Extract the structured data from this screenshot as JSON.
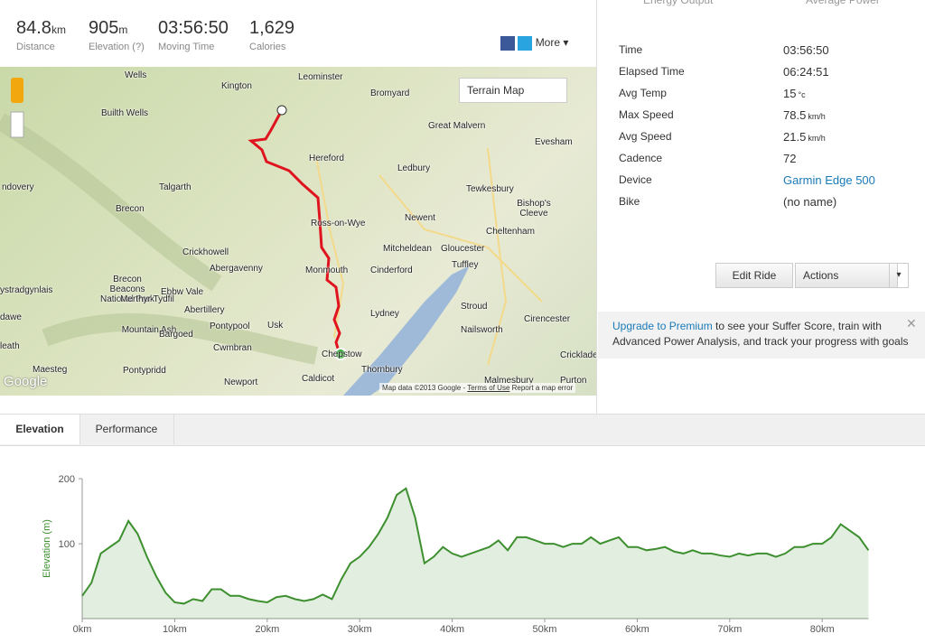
{
  "top_tabs": [
    "Energy Output",
    "Average Power"
  ],
  "stats": [
    {
      "value": "84.8",
      "unit": "km",
      "label": "Distance"
    },
    {
      "value": "905",
      "unit": "m",
      "label": "Elevation (?)"
    },
    {
      "value": "03:56:50",
      "label": "Moving Time"
    },
    {
      "value": "1,629",
      "label": "Calories"
    }
  ],
  "share": {
    "more": "More"
  },
  "map": {
    "type_button": "Terrain Map",
    "attribution": "Map data ©2013 Google -",
    "terms": "Terms of Use",
    "report": "Report a map error",
    "logo": "Google",
    "labels": [
      "Leominster",
      "Kington",
      "Bromyard",
      "Wells",
      "Builth Wells",
      "Great Malvern",
      "Evesham",
      "Hereford",
      "Ledbury",
      "ndovery",
      "Talgarth",
      "Tewkesbury",
      "Brecon",
      "Ross-on-Wye",
      "Newent",
      "Bishop's Cleeve",
      "Cheltenham",
      "Brecon Beacons National Park",
      "Crickhowell",
      "Mitcheldean",
      "Gloucester",
      "Abergavenny",
      "Monmouth",
      "Cinderford",
      "Tuffley",
      "ystradgynlais",
      "Ebbw Vale",
      "Merthyr Tydfil",
      "Abertillery",
      "Stroud",
      "dawe",
      "Lydney",
      "Cirencester",
      "Pontypool",
      "Usk",
      "Mountain Ash",
      "Bargoed",
      "Nailsworth",
      "leath",
      "Cwmbran",
      "Chepstow",
      "Cricklade",
      "Maesteg",
      "Pontypridd",
      "Thornbury",
      "Caldicot",
      "Newport",
      "Malmesbury",
      "Purton"
    ]
  },
  "details": [
    {
      "label": "Time",
      "value": "03:56:50"
    },
    {
      "label": "Elapsed Time",
      "value": "06:24:51"
    },
    {
      "label": "Avg Temp",
      "value": "15",
      "unit": "°c"
    },
    {
      "label": "Max Speed",
      "value": "78.5",
      "unit": "km/h"
    },
    {
      "label": "Avg Speed",
      "value": "21.5",
      "unit": "km/h"
    },
    {
      "label": "Cadence",
      "value": "72"
    },
    {
      "label": "Device",
      "value": "Garmin Edge 500"
    },
    {
      "label": "Bike",
      "value": "(no name)"
    }
  ],
  "buttons": {
    "edit": "Edit Ride",
    "actions": "Actions"
  },
  "upsell": {
    "link": "Upgrade to Premium",
    "text": " to see your Suffer Score, train with Advanced Power Analysis, and track your progress with goals"
  },
  "chart_tabs": [
    "Elevation",
    "Performance"
  ],
  "chart_data": {
    "type": "area",
    "y_label": "Elevation (m)",
    "color": "#3d8f2f",
    "x": [
      0,
      1,
      2,
      3,
      4,
      5,
      6,
      7,
      8,
      9,
      10,
      11,
      12,
      13,
      14,
      15,
      16,
      17,
      18,
      19,
      20,
      21,
      22,
      23,
      24,
      25,
      26,
      27,
      28,
      29,
      30,
      31,
      32,
      33,
      34,
      35,
      36,
      37,
      38,
      39,
      40,
      41,
      42,
      43,
      44,
      45,
      46,
      47,
      48,
      49,
      50,
      51,
      52,
      53,
      54,
      55,
      56,
      57,
      58,
      59,
      60,
      61,
      62,
      63,
      64,
      65,
      66,
      67,
      68,
      69,
      70,
      71,
      72,
      73,
      74,
      75,
      76,
      77,
      78,
      79,
      80,
      81,
      82,
      83,
      84,
      85
    ],
    "values": [
      20,
      40,
      85,
      95,
      105,
      135,
      115,
      80,
      50,
      25,
      10,
      8,
      15,
      12,
      30,
      30,
      20,
      20,
      15,
      12,
      10,
      18,
      20,
      15,
      12,
      15,
      22,
      15,
      45,
      70,
      80,
      95,
      115,
      140,
      175,
      185,
      140,
      70,
      80,
      95,
      85,
      80,
      85,
      90,
      95,
      105,
      90,
      110,
      110,
      105,
      100,
      100,
      95,
      100,
      100,
      110,
      100,
      105,
      110,
      95,
      95,
      90,
      92,
      95,
      88,
      85,
      90,
      85,
      85,
      82,
      80,
      85,
      82,
      85,
      85,
      80,
      85,
      95,
      95,
      100,
      100,
      110,
      130,
      120,
      110,
      90
    ],
    "xlim": [
      0,
      85
    ],
    "ylim": [
      -15,
      200
    ],
    "xticks": [
      {
        "value": 0,
        "label": "0km"
      },
      {
        "value": 10,
        "label": "10km"
      },
      {
        "value": 20,
        "label": "20km"
      },
      {
        "value": 30,
        "label": "30km"
      },
      {
        "value": 40,
        "label": "40km"
      },
      {
        "value": 50,
        "label": "50km"
      },
      {
        "value": 60,
        "label": "60km"
      },
      {
        "value": 70,
        "label": "70km"
      },
      {
        "value": 80,
        "label": "80km"
      }
    ],
    "yticks": [
      100,
      200
    ]
  }
}
